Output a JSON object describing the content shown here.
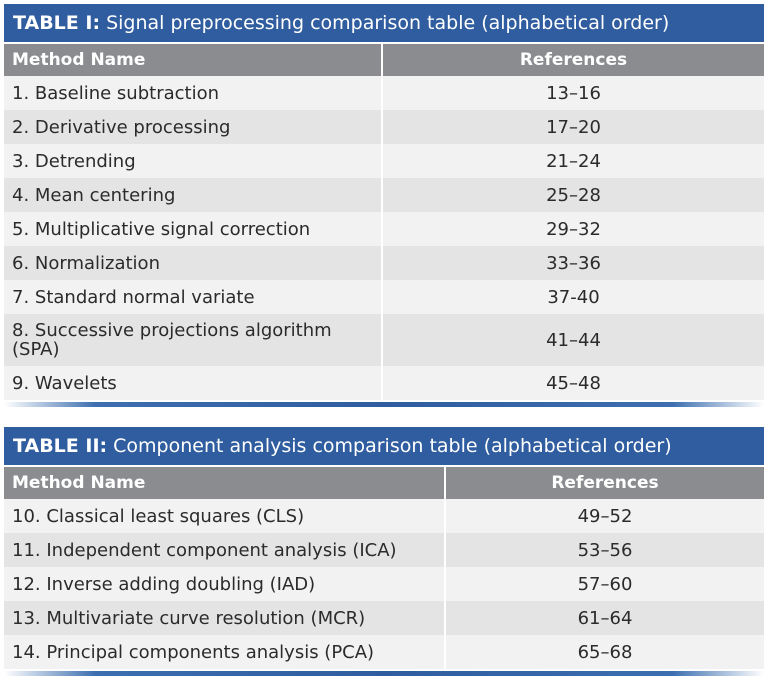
{
  "table1": {
    "label": "TABLE I:",
    "title": " Signal preprocessing comparison table (alphabetical order)",
    "headers": {
      "method": "Method Name",
      "references": "References"
    },
    "rows": [
      {
        "method": "1. Baseline subtraction",
        "references": "13–16"
      },
      {
        "method": "2. Derivative processing",
        "references": "17–20"
      },
      {
        "method": "3. Detrending",
        "references": "21–24"
      },
      {
        "method": "4. Mean centering",
        "references": "25–28"
      },
      {
        "method": "5. Multiplicative signal correction",
        "references": "29–32"
      },
      {
        "method": "6. Normalization",
        "references": "33–36"
      },
      {
        "method": "7. Standard normal variate",
        "references": "37-40"
      },
      {
        "method": "8. Successive projections algorithm (SPA)",
        "references": "41–44"
      },
      {
        "method": "9. Wavelets",
        "references": "45–48"
      }
    ]
  },
  "table2": {
    "label": "TABLE II:",
    "title": " Component analysis comparison table (alphabetical order)",
    "headers": {
      "method": "Method Name",
      "references": "References"
    },
    "rows": [
      {
        "method": "10. Classical least squares (CLS)",
        "references": "49–52"
      },
      {
        "method": "11. Independent component analysis (ICA)",
        "references": "53–56"
      },
      {
        "method": "12. Inverse adding doubling (IAD)",
        "references": "57–60"
      },
      {
        "method": "13. Multivariate curve resolution (MCR)",
        "references": "61–64"
      },
      {
        "method": "14. Principal components analysis (PCA)",
        "references": "65–68"
      }
    ]
  }
}
